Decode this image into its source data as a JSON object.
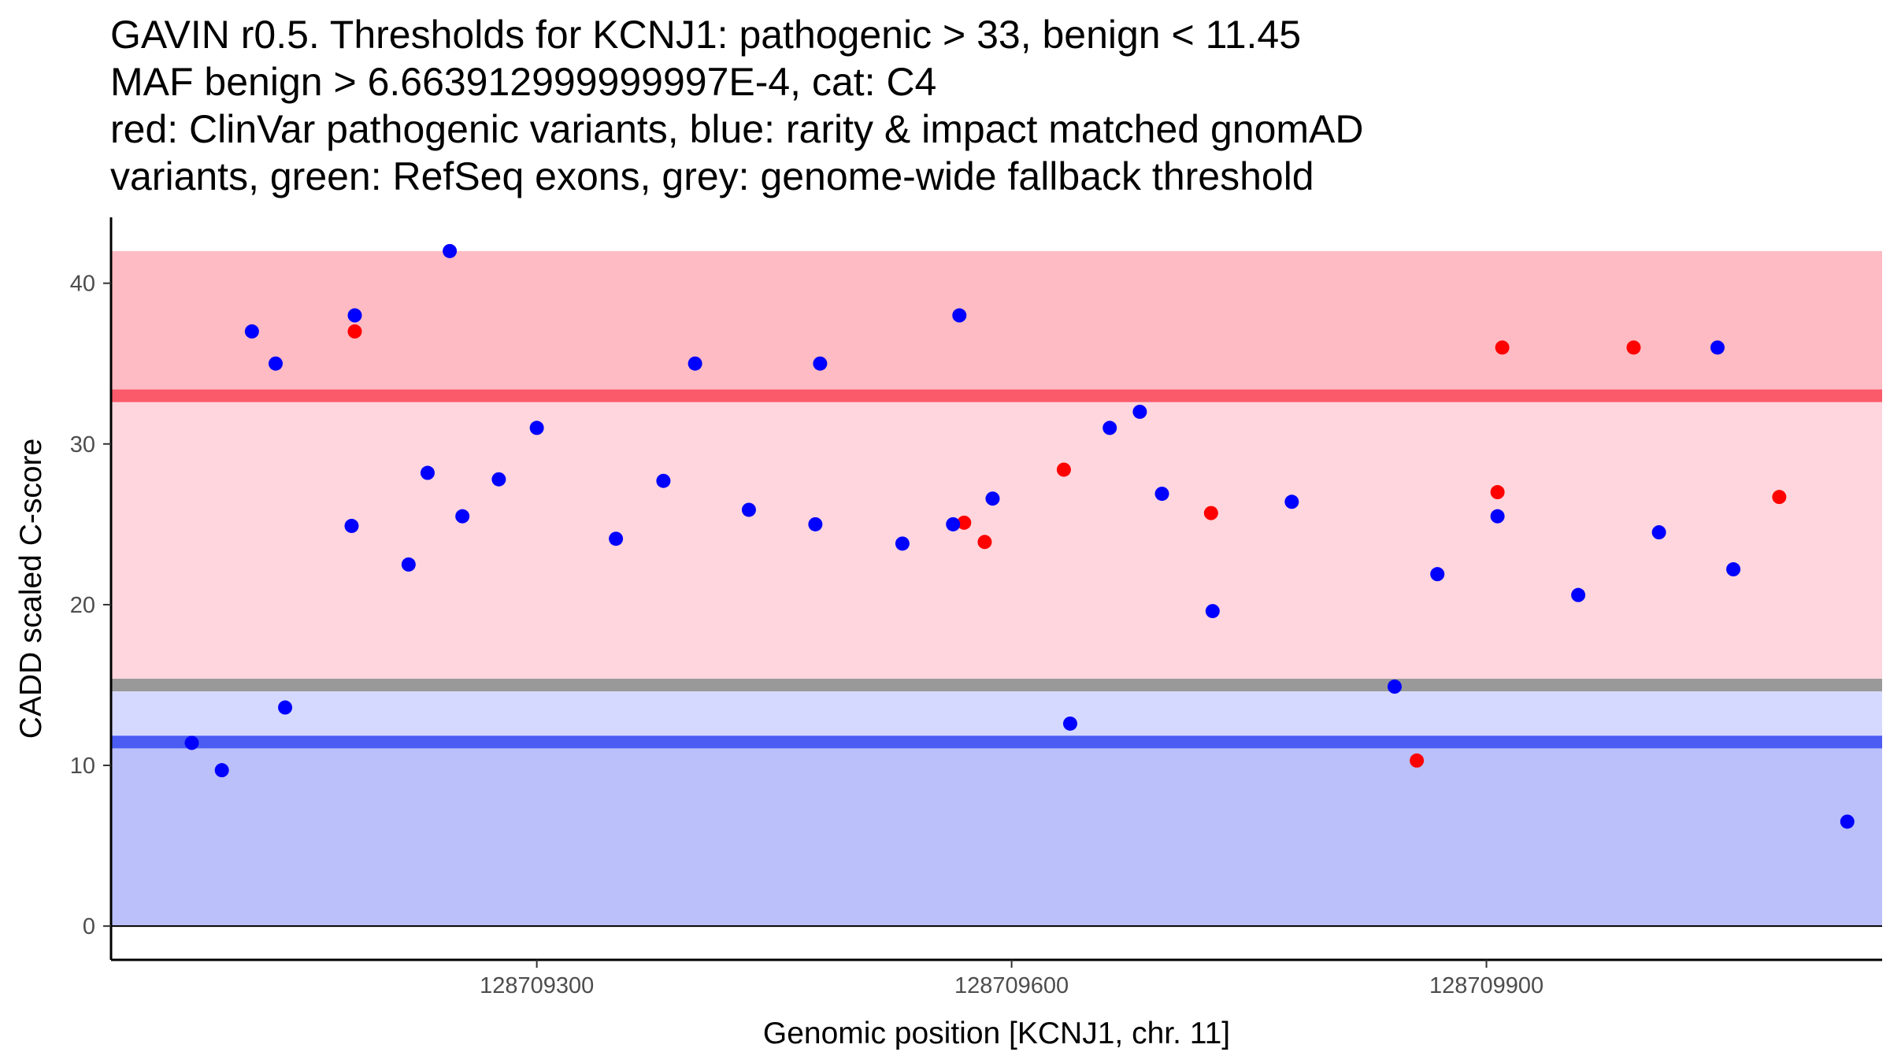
{
  "chart_data": {
    "type": "scatter",
    "title_lines": [
      "GAVIN r0.5. Thresholds for KCNJ1: pathogenic > 33, benign < 11.45",
      "MAF benign > 6.663912999999997E-4, cat: C4",
      "red: ClinVar pathogenic variants, blue: rarity & impact matched gnomAD",
      "variants, green: RefSeq exons, grey: genome-wide fallback threshold"
    ],
    "xlabel": "Genomic position [KCNJ1, chr. 11]",
    "ylabel": "CADD scaled C-score",
    "xlim": [
      128709031,
      128710150
    ],
    "ylim": [
      -2.1,
      44.1
    ],
    "x_ticks": [
      {
        "value": 128709300,
        "label": "128709300"
      },
      {
        "value": 128709600,
        "label": "128709600"
      },
      {
        "value": 128709900,
        "label": "128709900"
      }
    ],
    "y_ticks": [
      {
        "value": 0,
        "label": "0"
      },
      {
        "value": 10,
        "label": "10"
      },
      {
        "value": 20,
        "label": "20"
      },
      {
        "value": 30,
        "label": "30"
      },
      {
        "value": 40,
        "label": "40"
      }
    ],
    "thresholds": {
      "pathogenic": 33,
      "benign": 11.45,
      "genome_wide_fallback_upper": 15.15,
      "genome_wide_fallback_lower": 14.6
    },
    "bands": [
      {
        "name": "strong-pathogenic-band",
        "y0": 33,
        "y1": 42,
        "color": "#ffbbc3"
      },
      {
        "name": "pathogenic-band",
        "y0": 15.15,
        "y1": 33,
        "color": "#ffd6dd"
      },
      {
        "name": "light-benign-band",
        "y0": 11.45,
        "y1": 14.6,
        "color": "#d6d9ff"
      },
      {
        "name": "benign-band",
        "y0": 0,
        "y1": 11.45,
        "color": "#bbbffa"
      }
    ],
    "lines": [
      {
        "name": "pathogenic-threshold-line",
        "y": 33,
        "color": "#fb5a6b"
      },
      {
        "name": "fallback-threshold-line",
        "y": 15,
        "color": "#999999"
      },
      {
        "name": "benign-threshold-line",
        "y": 11.45,
        "color": "#4b5cf2"
      }
    ],
    "series": [
      {
        "name": "ClinVar pathogenic variants",
        "color": "#ff0000",
        "points": [
          {
            "x": 128709185,
            "y": 37.0
          },
          {
            "x": 128709570,
            "y": 25.1
          },
          {
            "x": 128709583,
            "y": 23.9
          },
          {
            "x": 128709633,
            "y": 28.4
          },
          {
            "x": 128709726,
            "y": 25.7
          },
          {
            "x": 128709856,
            "y": 10.3
          },
          {
            "x": 128709907,
            "y": 27.0
          },
          {
            "x": 128709910,
            "y": 36.0
          },
          {
            "x": 128709993,
            "y": 36.0
          },
          {
            "x": 128710085,
            "y": 26.7
          }
        ]
      },
      {
        "name": "rarity & impact matched gnomAD variants",
        "color": "#0000ff",
        "points": [
          {
            "x": 128709082,
            "y": 11.4
          },
          {
            "x": 128709101,
            "y": 9.7
          },
          {
            "x": 128709120,
            "y": 37.0
          },
          {
            "x": 128709135,
            "y": 35.0
          },
          {
            "x": 128709141,
            "y": 13.6
          },
          {
            "x": 128709183,
            "y": 24.9
          },
          {
            "x": 128709185,
            "y": 38.0
          },
          {
            "x": 128709219,
            "y": 22.5
          },
          {
            "x": 128709231,
            "y": 28.2
          },
          {
            "x": 128709245,
            "y": 42.0
          },
          {
            "x": 128709253,
            "y": 25.5
          },
          {
            "x": 128709276,
            "y": 27.8
          },
          {
            "x": 128709300,
            "y": 31.0
          },
          {
            "x": 128709350,
            "y": 24.1
          },
          {
            "x": 128709380,
            "y": 27.7
          },
          {
            "x": 128709400,
            "y": 35.0
          },
          {
            "x": 128709434,
            "y": 25.9
          },
          {
            "x": 128709476,
            "y": 25.0
          },
          {
            "x": 128709479,
            "y": 35.0
          },
          {
            "x": 128709531,
            "y": 23.8
          },
          {
            "x": 128709563,
            "y": 25.0
          },
          {
            "x": 128709567,
            "y": 38.0
          },
          {
            "x": 128709588,
            "y": 26.6
          },
          {
            "x": 128709637,
            "y": 12.6
          },
          {
            "x": 128709662,
            "y": 31.0
          },
          {
            "x": 128709681,
            "y": 32.0
          },
          {
            "x": 128709695,
            "y": 26.9
          },
          {
            "x": 128709727,
            "y": 19.6
          },
          {
            "x": 128709777,
            "y": 26.4
          },
          {
            "x": 128709842,
            "y": 14.9
          },
          {
            "x": 128709869,
            "y": 21.9
          },
          {
            "x": 128709907,
            "y": 25.5
          },
          {
            "x": 128709958,
            "y": 20.6
          },
          {
            "x": 128710009,
            "y": 24.5
          },
          {
            "x": 128710046,
            "y": 36.0
          },
          {
            "x": 128710056,
            "y": 22.2
          },
          {
            "x": 128710128,
            "y": 6.5
          }
        ]
      }
    ]
  }
}
